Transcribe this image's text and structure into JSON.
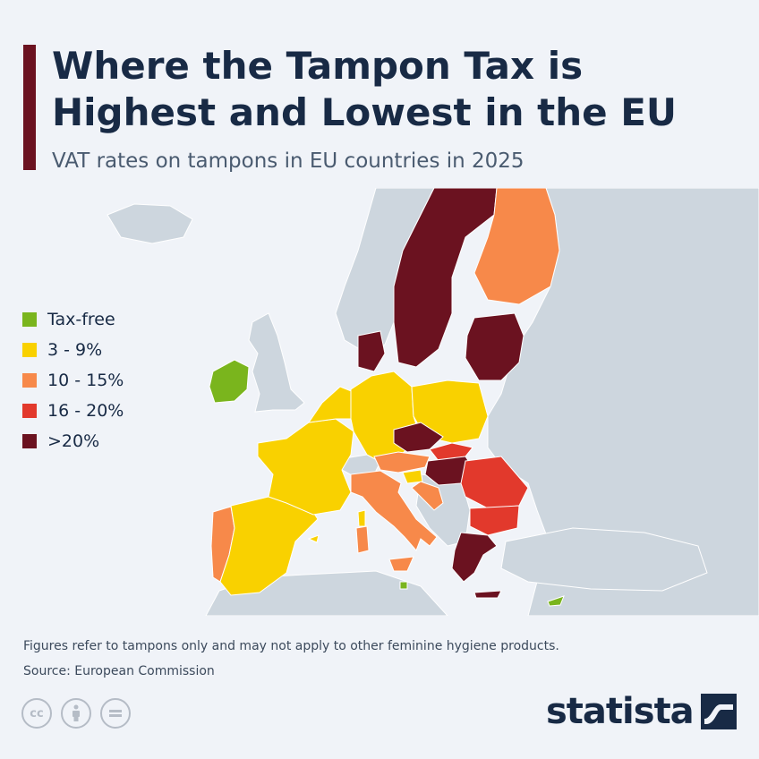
{
  "header": {
    "title": "Where the Tampon Tax is Highest and Lowest in the EU",
    "subtitle": "VAT rates on tampons in EU countries in 2025"
  },
  "legend": [
    {
      "label": "Tax-free",
      "color": "#7ab51d"
    },
    {
      "label": "3 - 9%",
      "color": "#f9d100"
    },
    {
      "label": "10 - 15%",
      "color": "#f7894a"
    },
    {
      "label": "16 - 20%",
      "color": "#e2392c"
    },
    {
      "label": ">20%",
      "color": "#6b1220"
    }
  ],
  "map_colors": {
    "background_land": "#cdd6de",
    "sea": "#f0f3f8",
    "border": "#ffffff"
  },
  "countries": {
    "tax_free": [
      "Ireland",
      "Malta",
      "Cyprus"
    ],
    "3_9": [
      "Spain",
      "France",
      "Belgium",
      "Netherlands",
      "Luxembourg",
      "Germany",
      "Poland",
      "Slovenia"
    ],
    "10_15": [
      "Portugal",
      "Italy",
      "Austria",
      "Finland",
      "Croatia",
      "Bulgaria"
    ],
    "16_20": [
      "Slovakia",
      "Romania"
    ],
    "over_20": [
      "Sweden",
      "Denmark",
      "Estonia",
      "Latvia",
      "Lithuania",
      "Czechia",
      "Hungary",
      "Greece"
    ]
  },
  "footer": {
    "note": "Figures refer to tampons only and may not apply to other feminine hygiene products.",
    "source": "Source: European Commission",
    "brand": "statista"
  },
  "icons": [
    "cc-icon",
    "attribution-icon",
    "no-derivatives-icon",
    "statista-logo-icon"
  ]
}
